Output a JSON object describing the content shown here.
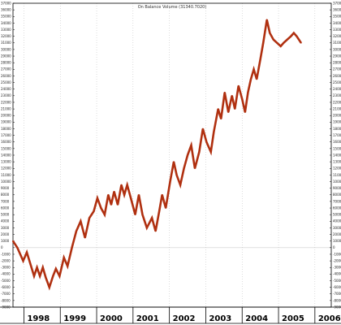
{
  "chart_data": {
    "type": "line",
    "title": "On Balance Volume (31340.7020)",
    "xlabel": "",
    "ylabel": "",
    "xlim": [
      1997.7,
      2006.45
    ],
    "ylim": [
      -9000,
      37000
    ],
    "year_ticks": [
      "1998",
      "1999",
      "2000",
      "2001",
      "2002",
      "2003",
      "2004",
      "2005",
      "2006"
    ],
    "y_ticks": [
      -9000,
      -8000,
      -7000,
      -6000,
      -5000,
      -4000,
      -3000,
      -2000,
      -1000,
      0,
      1000,
      2000,
      3000,
      4000,
      5000,
      6000,
      7000,
      8000,
      9000,
      10000,
      11000,
      12000,
      13000,
      14000,
      15000,
      16000,
      17000,
      18000,
      19000,
      20000,
      21000,
      22000,
      23000,
      24000,
      25000,
      26000,
      27000,
      28000,
      29000,
      30000,
      31000,
      32000,
      33000,
      34000,
      35000,
      36000,
      37000
    ],
    "grid": true,
    "legend": "none",
    "colors": {
      "line": "#b03010",
      "grid": "#bbbbbb",
      "axis": "#000000"
    },
    "series": [
      {
        "x": [
          1997.7,
          1997.82,
          1997.98,
          1998.08,
          1998.18,
          1998.28,
          1998.36,
          1998.44,
          1998.52,
          1998.6,
          1998.7,
          1998.8,
          1998.88,
          1998.98,
          1999.1,
          1999.2,
          1999.32,
          1999.44,
          1999.56,
          1999.68,
          1999.8,
          1999.92,
          2000.02,
          2000.12,
          2000.22,
          2000.32,
          2000.4,
          2000.48,
          2000.58,
          2000.68,
          2000.76,
          2000.84,
          2000.94,
          2001.06,
          2001.16,
          2001.26,
          2001.38,
          2001.52,
          2001.62,
          2001.72,
          2001.8,
          2001.9,
          2002.02,
          2002.12,
          2002.2,
          2002.3,
          2002.4,
          2002.5,
          2002.6,
          2002.7,
          2002.82,
          2002.92,
          2003.02,
          2003.14,
          2003.22,
          2003.34,
          2003.42,
          2003.52,
          2003.62,
          2003.72,
          2003.8,
          2003.9,
          2004.0,
          2004.08,
          2004.16,
          2004.24,
          2004.32,
          2004.4,
          2004.5,
          2004.58,
          2004.68,
          2004.76,
          2004.86,
          2004.96,
          2005.06,
          2005.14,
          2005.24,
          2005.34,
          2005.42,
          2005.5,
          2005.62
        ],
        "y": [
          1000,
          0,
          -2000,
          -700,
          -2500,
          -4300,
          -3000,
          -4300,
          -3000,
          -4500,
          -6000,
          -4300,
          -3200,
          -4300,
          -1500,
          -2800,
          0,
          2500,
          4000,
          1500,
          4500,
          5500,
          7500,
          6000,
          5000,
          8000,
          6500,
          8500,
          6500,
          9500,
          8000,
          9500,
          7500,
          5000,
          8000,
          5000,
          3000,
          4500,
          2500,
          5500,
          8000,
          6000,
          10000,
          13000,
          11000,
          9500,
          12000,
          14000,
          15500,
          12000,
          14500,
          18000,
          16000,
          14500,
          17500,
          21000,
          19500,
          23500,
          20500,
          23000,
          21000,
          24500,
          22500,
          20500,
          23500,
          25500,
          27000,
          25500,
          28500,
          31000,
          34500,
          32500,
          31500,
          31000,
          30500,
          31000,
          31500,
          32000,
          32500,
          32000,
          31000
        ]
      }
    ]
  }
}
